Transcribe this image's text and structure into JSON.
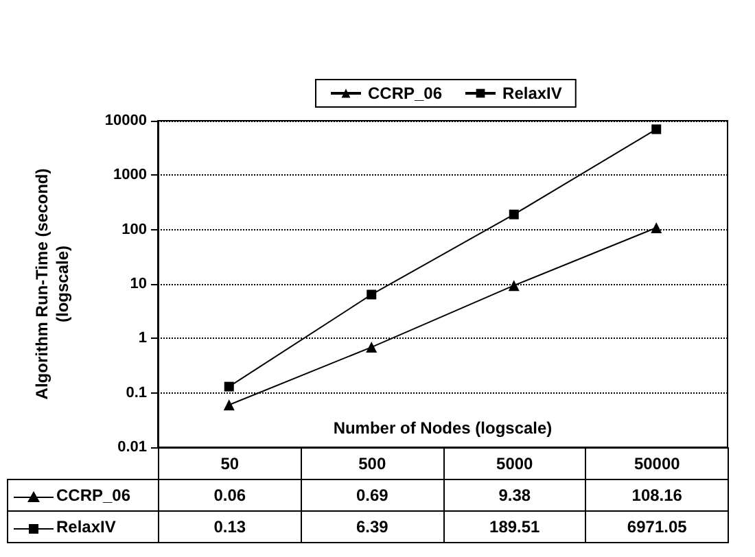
{
  "chart_data": {
    "type": "line",
    "ylabel": "Algorithm Run-Time (second)\n(logscale)",
    "xlabel": "Number of Nodes (logscale)",
    "categories": [
      "50",
      "500",
      "5000",
      "50000"
    ],
    "series": [
      {
        "name": "CCRP_06",
        "color": "#000000",
        "marker": "triangle",
        "values": [
          0.06,
          0.69,
          9.38,
          108.16
        ]
      },
      {
        "name": "RelaxIV",
        "color": "#000000",
        "marker": "square",
        "values": [
          0.13,
          6.39,
          189.51,
          6971.05
        ]
      }
    ],
    "log": "y",
    "ylim": [
      0.01,
      10000
    ],
    "yticks": [
      0.01,
      0.1,
      1,
      10,
      100,
      1000,
      10000
    ],
    "grid": "y",
    "line_style": "solid",
    "legend": "top",
    "data_labels": true
  }
}
